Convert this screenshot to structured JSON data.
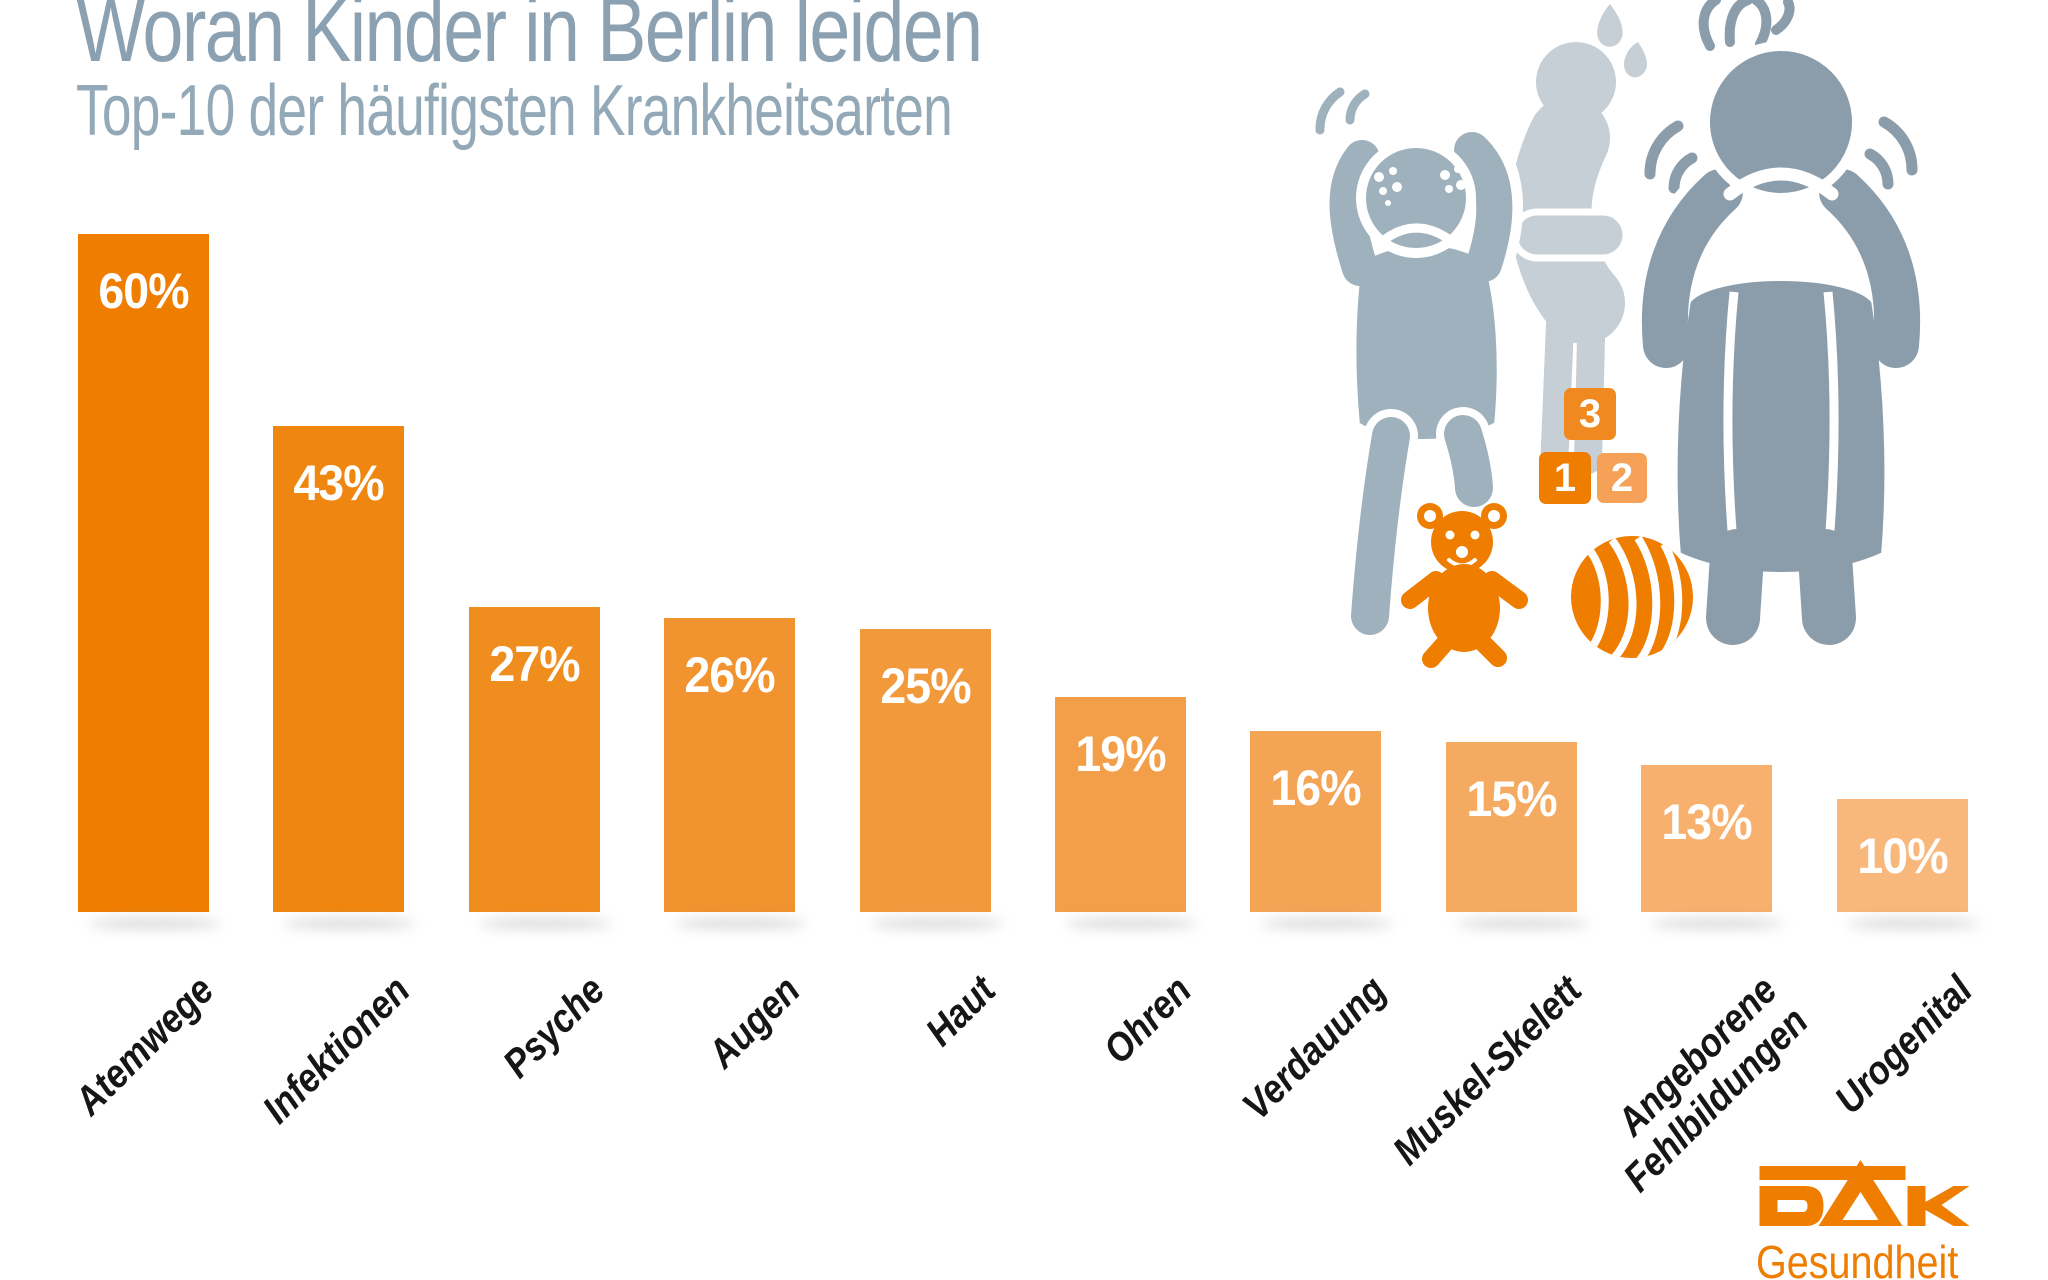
{
  "title": "Woran Kinder in Berlin leiden",
  "subtitle": "Top-10 der häufigsten Krankheitsarten",
  "chart_data": {
    "type": "bar",
    "title": "Woran Kinder in Berlin leiden",
    "subtitle": "Top-10 der häufigsten Krankheitsarten",
    "categories": [
      "Atemwege",
      "Infektionen",
      "Psyche",
      "Augen",
      "Haut",
      "Ohren",
      "Verdauung",
      "Muskel-Skelett",
      "Angeborene\nFehlbildungen",
      "Urogenital"
    ],
    "values": [
      60,
      43,
      27,
      26,
      25,
      19,
      16,
      15,
      13,
      10
    ],
    "value_labels": [
      "60%",
      "43%",
      "27%",
      "26%",
      "25%",
      "19%",
      "16%",
      "15%",
      "13%",
      "10%"
    ],
    "unit": "%",
    "bar_colors": [
      "#ee7d00",
      "#ef860f",
      "#f08d1f",
      "#f1932e",
      "#f2993c",
      "#f39f49",
      "#f4a455",
      "#f5aa61",
      "#f7b06e",
      "#f8b77b"
    ],
    "value_label_color": "#ffffff",
    "category_label_color": "#161616",
    "category_label_rotation_deg": -45,
    "xlabel": "",
    "ylabel": "",
    "ylim": [
      0,
      65
    ],
    "grid": false,
    "legend": false
  },
  "illustration": {
    "children": [
      {
        "name": "child-itching",
        "color": "#9fb1bd"
      },
      {
        "name": "child-stomach-ache",
        "color": "#c6cfd6"
      },
      {
        "name": "child-headache",
        "color": "#8b9dab"
      }
    ],
    "blocks": [
      {
        "label": "3",
        "color": "#f0891f"
      },
      {
        "label": "1",
        "color": "#ee7d00"
      },
      {
        "label": "2",
        "color": "#f5a158"
      }
    ],
    "toy_color": "#ee7d00"
  },
  "logo": {
    "brand": "DAK",
    "tagline": "Gesundheit",
    "color": "#ee7d00"
  },
  "colors": {
    "background": "#ffffff",
    "title_text": "#8ba1b1",
    "subtitle_text": "#93a9b7"
  }
}
